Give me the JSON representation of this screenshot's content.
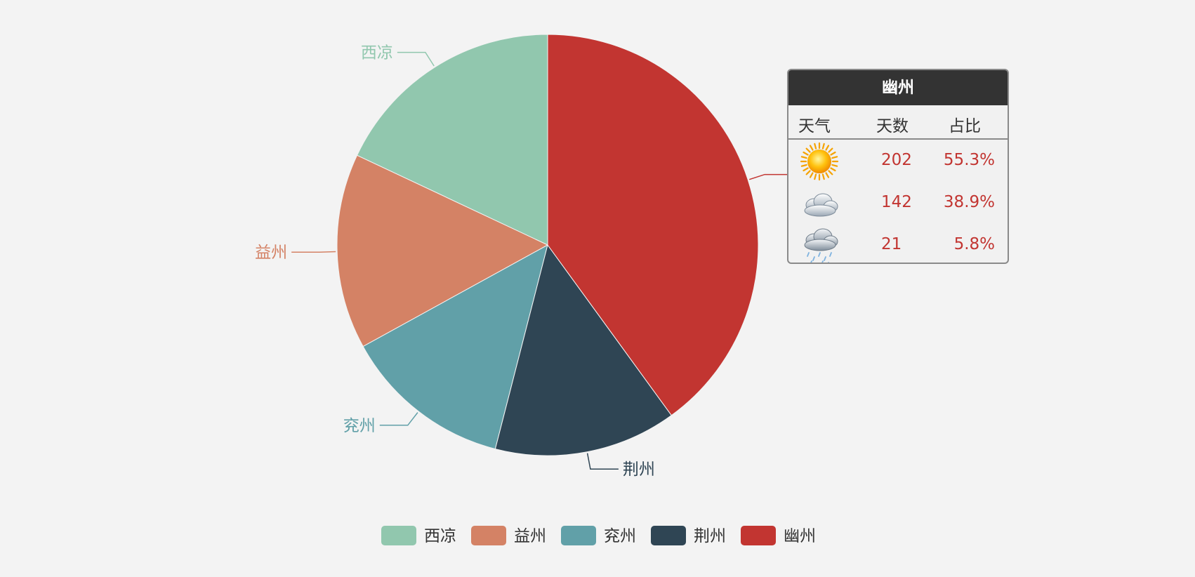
{
  "chart_data": {
    "type": "pie",
    "categories": [
      "西凉",
      "益州",
      "兖州",
      "荆州",
      "幽州"
    ],
    "values": [
      18,
      15,
      13,
      14,
      40
    ],
    "colors": [
      "#91c7ae",
      "#d48265",
      "#61a0a8",
      "#2f4554",
      "#c23531"
    ],
    "legend": [
      "西凉",
      "益州",
      "兖州",
      "荆州",
      "幽州"
    ],
    "legend_position": "bottom-center",
    "labels_position": "outside"
  },
  "tooltip": {
    "title": "幽州",
    "headers": [
      "天气",
      "天数",
      "占比"
    ],
    "rows": [
      {
        "icon": "sun-icon",
        "days": "202",
        "pct": "55.3%"
      },
      {
        "icon": "cloud-icon",
        "days": "142",
        "pct": "38.9%"
      },
      {
        "icon": "rain-cloud-icon",
        "days": "21",
        "pct": "5.8%"
      }
    ],
    "text_color": "#c23531"
  }
}
